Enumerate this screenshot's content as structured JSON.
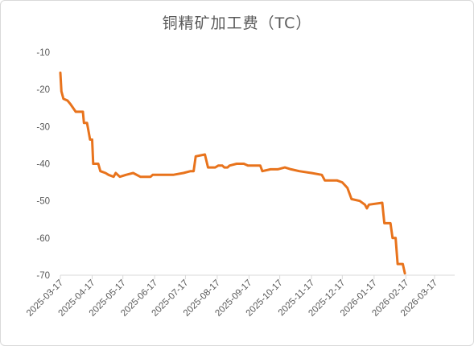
{
  "chart_data": {
    "type": "line",
    "title": "铜精矿加工费（TC）",
    "xlabel": "",
    "ylabel": "",
    "ylim": [
      -70,
      -10
    ],
    "yticks": [
      -10,
      -20,
      -30,
      -40,
      -50,
      -60,
      -70
    ],
    "x_tick_labels": [
      "2025-03-17",
      "2025-04-17",
      "2025-05-17",
      "2025-06-17",
      "2025-07-17",
      "2025-08-17",
      "2025-09-17",
      "2025-10-17",
      "2025-11-17",
      "2025-12-17",
      "2026-01-17",
      "2026-02-17",
      "2026-03-17"
    ],
    "grid": false,
    "legend": "none",
    "series": [
      {
        "color": "#E8731C",
        "points": [
          [
            "2025-03-17",
            -15.5
          ],
          [
            "2025-03-18",
            -20.5
          ],
          [
            "2025-03-20",
            -22.5
          ],
          [
            "2025-03-24",
            -23
          ],
          [
            "2025-03-27",
            -24
          ],
          [
            "2025-04-01",
            -26
          ],
          [
            "2025-04-08",
            -26
          ],
          [
            "2025-04-09",
            -29
          ],
          [
            "2025-04-12",
            -29
          ],
          [
            "2025-04-13",
            -30.5
          ],
          [
            "2025-04-15",
            -33.5
          ],
          [
            "2025-04-17",
            -33.5
          ],
          [
            "2025-04-18",
            -40
          ],
          [
            "2025-04-23",
            -40
          ],
          [
            "2025-04-25",
            -42
          ],
          [
            "2025-04-30",
            -42.5
          ],
          [
            "2025-05-03",
            -43
          ],
          [
            "2025-05-08",
            -43.5
          ],
          [
            "2025-05-10",
            -42.5
          ],
          [
            "2025-05-14",
            -43.5
          ],
          [
            "2025-05-20",
            -43
          ],
          [
            "2025-05-27",
            -42.5
          ],
          [
            "2025-06-03",
            -43.5
          ],
          [
            "2025-06-13",
            -43.5
          ],
          [
            "2025-06-15",
            -43
          ],
          [
            "2025-06-25",
            -43
          ],
          [
            "2025-07-05",
            -43
          ],
          [
            "2025-07-15",
            -42.5
          ],
          [
            "2025-07-22",
            -42
          ],
          [
            "2025-07-25",
            -42
          ],
          [
            "2025-07-27",
            -38
          ],
          [
            "2025-08-05",
            -37.5
          ],
          [
            "2025-08-08",
            -41
          ],
          [
            "2025-08-15",
            -41
          ],
          [
            "2025-08-18",
            -40.5
          ],
          [
            "2025-08-22",
            -40.5
          ],
          [
            "2025-08-24",
            -41
          ],
          [
            "2025-08-27",
            -41
          ],
          [
            "2025-08-29",
            -40.5
          ],
          [
            "2025-09-05",
            -40
          ],
          [
            "2025-09-12",
            -40
          ],
          [
            "2025-09-16",
            -40.5
          ],
          [
            "2025-09-28",
            -40.5
          ],
          [
            "2025-09-30",
            -42
          ],
          [
            "2025-10-08",
            -41.5
          ],
          [
            "2025-10-15",
            -41.5
          ],
          [
            "2025-10-22",
            -41
          ],
          [
            "2025-10-28",
            -41.5
          ],
          [
            "2025-11-05",
            -42
          ],
          [
            "2025-11-17",
            -42.5
          ],
          [
            "2025-11-27",
            -43
          ],
          [
            "2025-11-30",
            -44.5
          ],
          [
            "2025-12-12",
            -44.5
          ],
          [
            "2025-12-17",
            -45
          ],
          [
            "2025-12-22",
            -46.5
          ],
          [
            "2025-12-26",
            -49.5
          ],
          [
            "2026-01-03",
            -50
          ],
          [
            "2026-01-08",
            -51
          ],
          [
            "2026-01-10",
            -52
          ],
          [
            "2026-01-12",
            -51
          ],
          [
            "2026-01-25",
            -50.5
          ],
          [
            "2026-01-27",
            -56
          ],
          [
            "2026-02-02",
            -56
          ],
          [
            "2026-02-04",
            -60
          ],
          [
            "2026-02-07",
            -60
          ],
          [
            "2026-02-09",
            -67
          ],
          [
            "2026-02-14",
            -67
          ],
          [
            "2026-02-16",
            -69.5
          ]
        ]
      }
    ]
  }
}
